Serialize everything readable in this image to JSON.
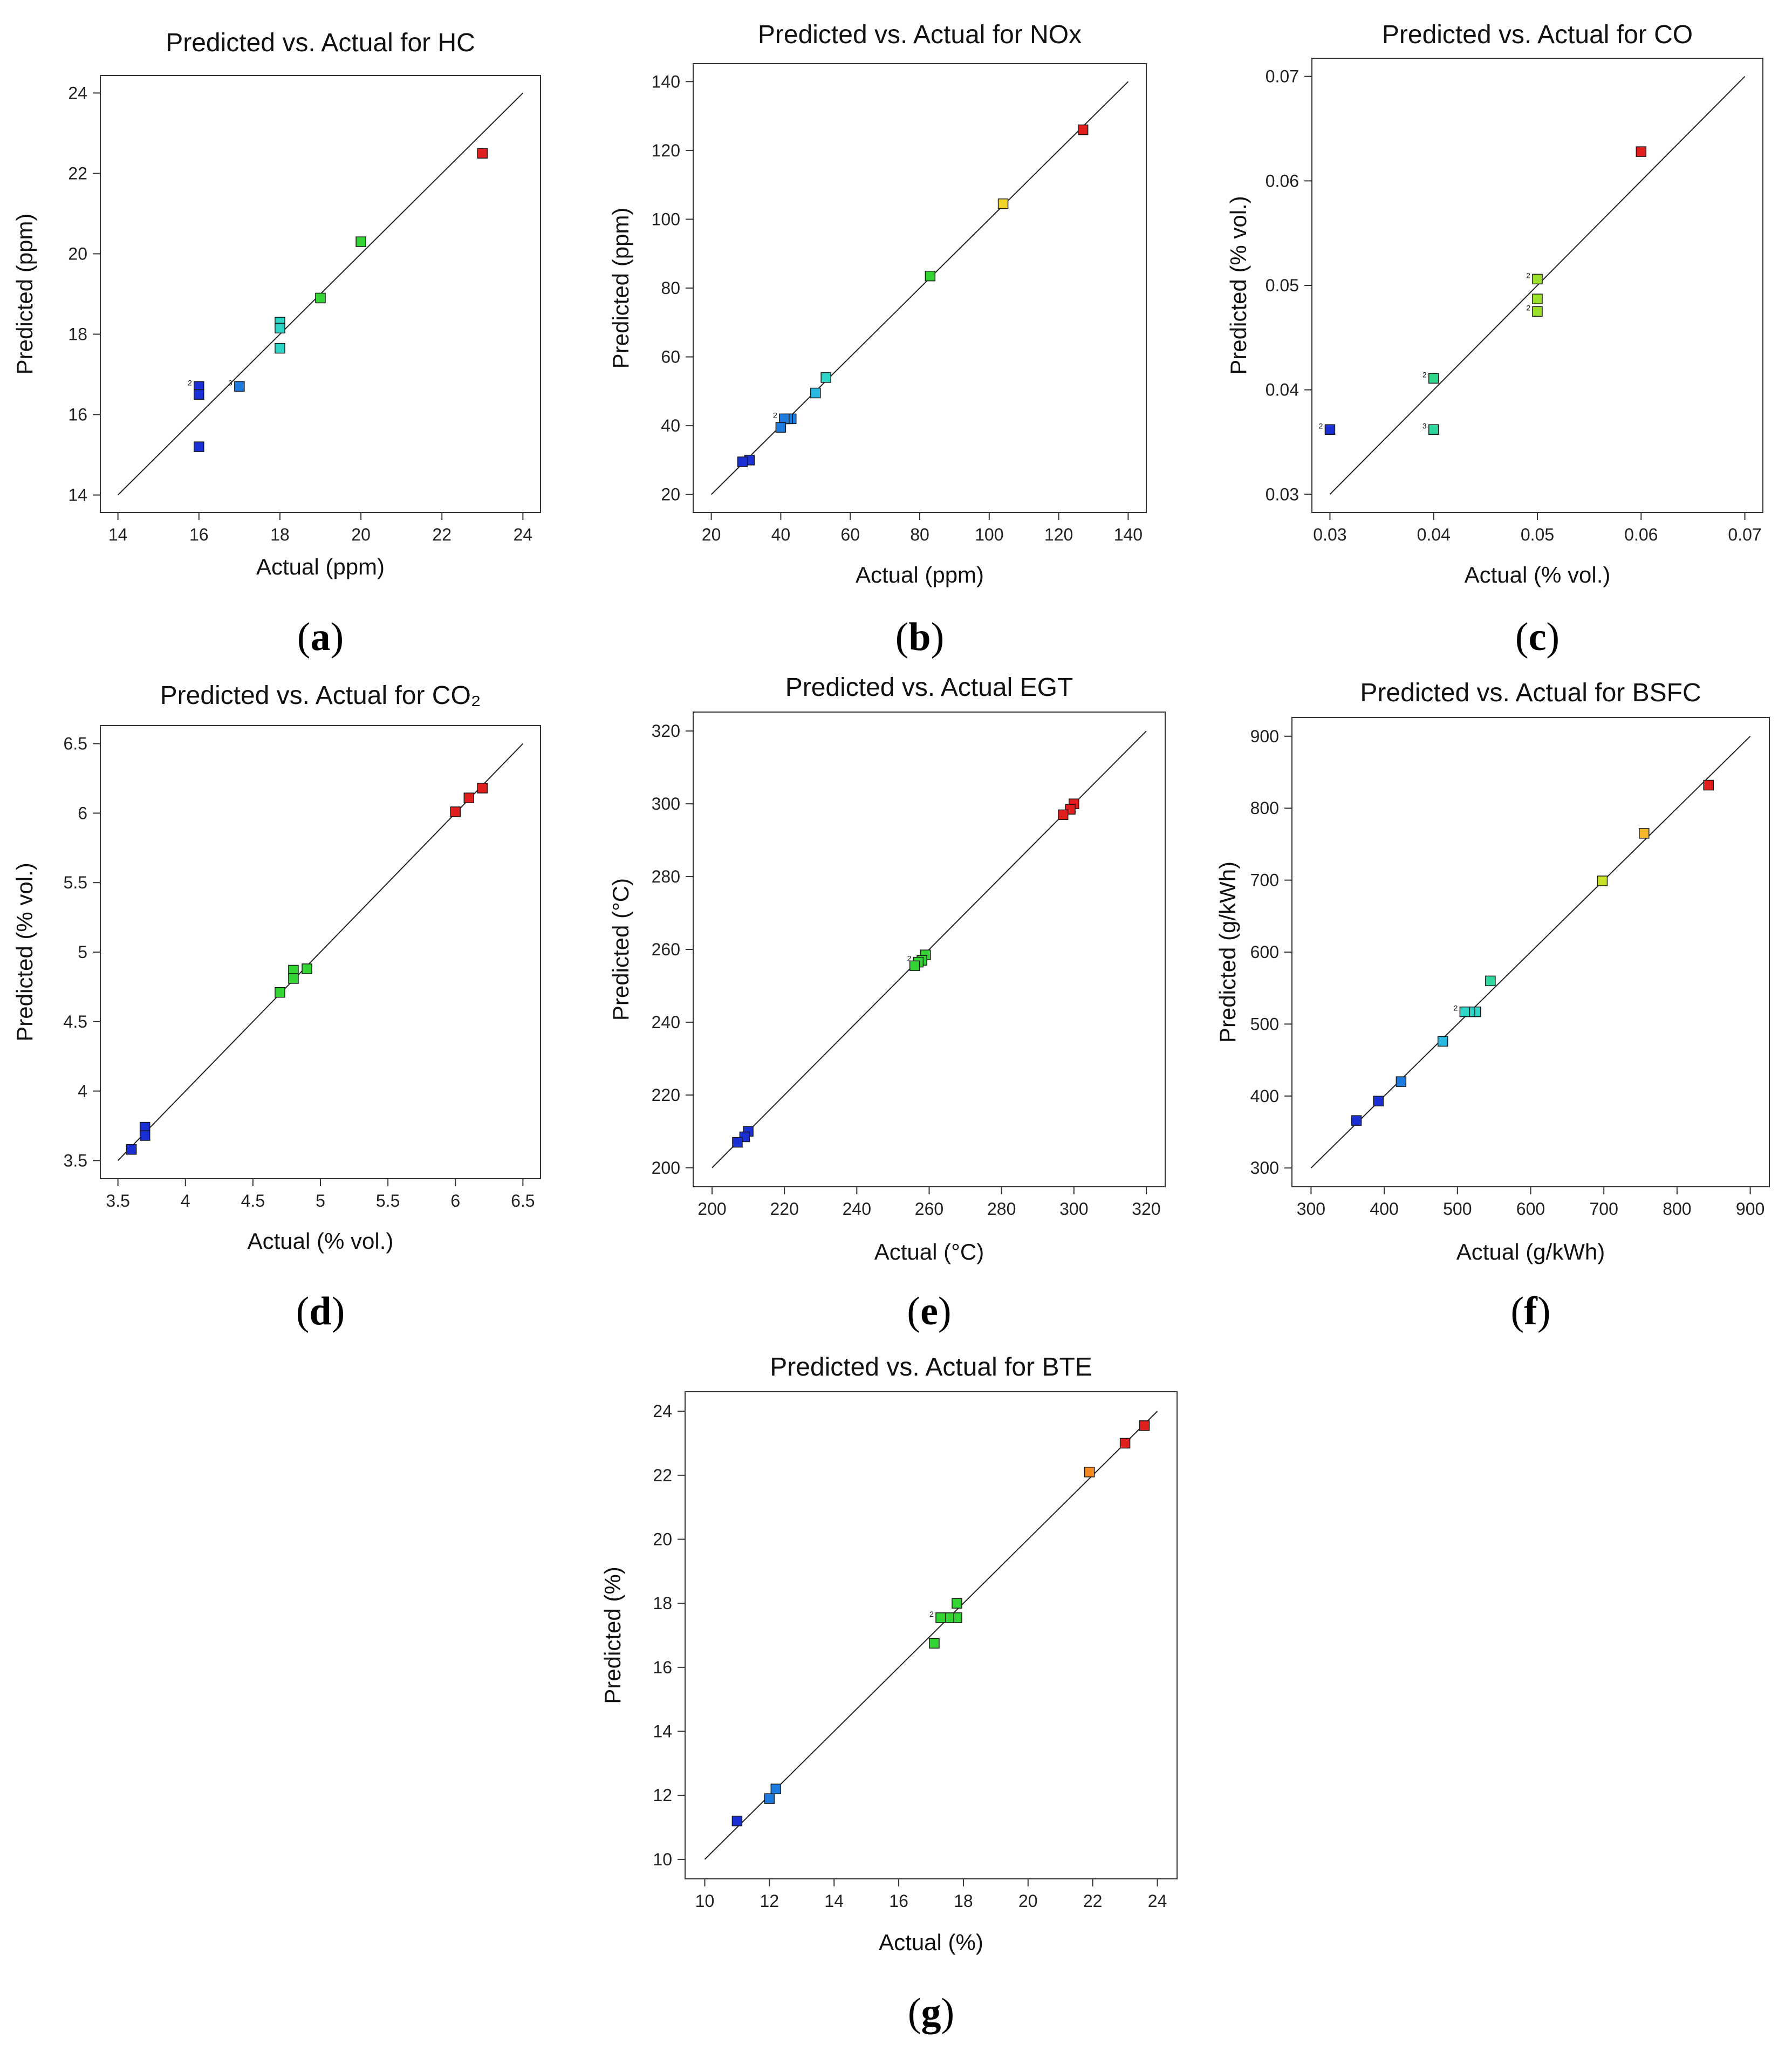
{
  "figure_title": "Predicted vs. Actual plots",
  "chart_data": [
    {
      "id": "a",
      "type": "scatter",
      "panel_label": "a",
      "title": "Predicted vs. Actual for HC",
      "xlabel": "Actual (ppm)",
      "ylabel": "Predicted (ppm)",
      "xlim": [
        14,
        24
      ],
      "ylim": [
        14,
        24
      ],
      "xticks": [
        14,
        16,
        18,
        20,
        22,
        24
      ],
      "yticks": [
        14,
        16,
        18,
        20,
        22,
        24
      ],
      "xtick_labels": [
        "14",
        "16",
        "18",
        "20",
        "22",
        "24"
      ],
      "ytick_labels": [
        "14",
        "16",
        "18",
        "20",
        "22",
        "24"
      ],
      "diagonal": [
        14,
        24
      ],
      "points": [
        {
          "x": 23,
          "y": 22.5,
          "color": "#e21f1f"
        },
        {
          "x": 20,
          "y": 20.3,
          "color": "#33d433"
        },
        {
          "x": 19,
          "y": 18.9,
          "color": "#33d433"
        },
        {
          "x": 18,
          "y": 18.3,
          "color": "#2fd6c8"
        },
        {
          "x": 18,
          "y": 18.15,
          "color": "#2fd6c8"
        },
        {
          "x": 18,
          "y": 17.65,
          "color": "#2fd6c8"
        },
        {
          "x": 17,
          "y": 16.7,
          "color": "#1e7be0",
          "count": "3"
        },
        {
          "x": 16,
          "y": 16.7,
          "color": "#1a2fd4",
          "count": "2"
        },
        {
          "x": 16,
          "y": 16.5,
          "color": "#1a2fd4"
        },
        {
          "x": 16,
          "y": 15.2,
          "color": "#1a2fd4"
        }
      ]
    },
    {
      "id": "b",
      "type": "scatter",
      "panel_label": "b",
      "title": "Predicted vs. Actual for NOx",
      "xlabel": "Actual (ppm)",
      "ylabel": "Predicted (ppm)",
      "xlim": [
        20,
        140
      ],
      "ylim": [
        20,
        140
      ],
      "xticks": [
        20,
        40,
        60,
        80,
        100,
        120,
        140
      ],
      "yticks": [
        20,
        40,
        60,
        80,
        100,
        120,
        140
      ],
      "xtick_labels": [
        "20",
        "40",
        "60",
        "80",
        "100",
        "120",
        "140"
      ],
      "ytick_labels": [
        "20",
        "40",
        "60",
        "80",
        "100",
        "120",
        "140"
      ],
      "diagonal": [
        20,
        140
      ],
      "points": [
        {
          "x": 127,
          "y": 126,
          "color": "#e21f1f"
        },
        {
          "x": 104,
          "y": 104.5,
          "color": "#f0d22a"
        },
        {
          "x": 83,
          "y": 83.5,
          "color": "#33d433"
        },
        {
          "x": 53,
          "y": 54,
          "color": "#2fd6c8"
        },
        {
          "x": 50,
          "y": 49.5,
          "color": "#2ab8e0"
        },
        {
          "x": 43,
          "y": 42,
          "color": "#1e7be0"
        },
        {
          "x": 42,
          "y": 42,
          "color": "#1e7be0"
        },
        {
          "x": 41,
          "y": 42,
          "color": "#1e7be0",
          "count": "2"
        },
        {
          "x": 40,
          "y": 39.5,
          "color": "#1e7be0"
        },
        {
          "x": 31,
          "y": 30,
          "color": "#1a2fd4"
        },
        {
          "x": 29,
          "y": 29.5,
          "color": "#1a2fd4"
        }
      ]
    },
    {
      "id": "c",
      "type": "scatter",
      "panel_label": "c",
      "title": "Predicted vs. Actual for CO",
      "xlabel": "Actual (% vol.)",
      "ylabel": "Predicted (% vol.)",
      "xlim": [
        0.03,
        0.07
      ],
      "ylim": [
        0.03,
        0.07
      ],
      "xticks": [
        0.03,
        0.04,
        0.05,
        0.06,
        0.07
      ],
      "yticks": [
        0.03,
        0.04,
        0.05,
        0.06,
        0.07
      ],
      "xtick_labels": [
        "0.03",
        "0.04",
        "0.05",
        "0.06",
        "0.07"
      ],
      "ytick_labels": [
        "0.03",
        "0.04",
        "0.05",
        "0.06",
        "0.07"
      ],
      "diagonal": [
        0.03,
        0.07
      ],
      "points": [
        {
          "x": 0.06,
          "y": 0.0628,
          "color": "#e21f1f"
        },
        {
          "x": 0.05,
          "y": 0.0506,
          "color": "#9be02a",
          "count": "2"
        },
        {
          "x": 0.05,
          "y": 0.0487,
          "color": "#9be02a"
        },
        {
          "x": 0.05,
          "y": 0.0475,
          "color": "#9be02a",
          "count": "2"
        },
        {
          "x": 0.04,
          "y": 0.0411,
          "color": "#2fd68c",
          "count": "2"
        },
        {
          "x": 0.04,
          "y": 0.0362,
          "color": "#2fd6a0",
          "count": "3"
        },
        {
          "x": 0.03,
          "y": 0.0362,
          "color": "#1a2fd4",
          "count": "2"
        }
      ]
    },
    {
      "id": "d",
      "type": "scatter",
      "panel_label": "d",
      "title": "Predicted vs. Actual for CO₂",
      "xlabel": "Actual (% vol.)",
      "ylabel": "Predicted (% vol.)",
      "xlim": [
        3.5,
        6.5
      ],
      "ylim": [
        3.5,
        6.5
      ],
      "xticks": [
        3.5,
        4,
        4.5,
        5,
        5.5,
        6,
        6.5
      ],
      "yticks": [
        3.5,
        4,
        4.5,
        5,
        5.5,
        6,
        6.5
      ],
      "xtick_labels": [
        "3.5",
        "4",
        "4.5",
        "5",
        "5.5",
        "6",
        "6.5"
      ],
      "ytick_labels": [
        "3.5",
        "4",
        "4.5",
        "5",
        "5.5",
        "6",
        "6.5"
      ],
      "diagonal": [
        3.5,
        6.5
      ],
      "points": [
        {
          "x": 6.2,
          "y": 6.18,
          "color": "#e21f1f"
        },
        {
          "x": 6.1,
          "y": 6.11,
          "color": "#e21f1f"
        },
        {
          "x": 6.0,
          "y": 6.01,
          "color": "#e21f1f"
        },
        {
          "x": 4.9,
          "y": 4.88,
          "color": "#33d433"
        },
        {
          "x": 4.8,
          "y": 4.87,
          "color": "#33d433"
        },
        {
          "x": 4.8,
          "y": 4.81,
          "color": "#33d433"
        },
        {
          "x": 4.7,
          "y": 4.71,
          "color": "#33d433"
        },
        {
          "x": 3.7,
          "y": 3.74,
          "color": "#1a2fd4"
        },
        {
          "x": 3.7,
          "y": 3.68,
          "color": "#1a2fd4"
        },
        {
          "x": 3.6,
          "y": 3.58,
          "color": "#1a2fd4"
        }
      ]
    },
    {
      "id": "e",
      "type": "scatter",
      "panel_label": "e",
      "title": "Predicted vs. Actual EGT",
      "xlabel": "Actual  (°C)",
      "ylabel": "Predicted (°C)",
      "xlim": [
        200,
        320
      ],
      "ylim": [
        200,
        320
      ],
      "xticks": [
        200,
        220,
        240,
        260,
        280,
        300,
        320
      ],
      "yticks": [
        200,
        220,
        240,
        260,
        280,
        300,
        320
      ],
      "xtick_labels": [
        "200",
        "220",
        "240",
        "260",
        "280",
        "300",
        "320"
      ],
      "ytick_labels": [
        "200",
        "220",
        "240",
        "260",
        "280",
        "300",
        "320"
      ],
      "diagonal": [
        200,
        320
      ],
      "points": [
        {
          "x": 300,
          "y": 300,
          "color": "#e21f1f"
        },
        {
          "x": 299,
          "y": 298.5,
          "color": "#e21f1f"
        },
        {
          "x": 297,
          "y": 297,
          "color": "#e21f1f"
        },
        {
          "x": 259,
          "y": 258.5,
          "color": "#33d433"
        },
        {
          "x": 258,
          "y": 257,
          "color": "#33d433"
        },
        {
          "x": 257,
          "y": 256.5,
          "color": "#33d433",
          "count": "2"
        },
        {
          "x": 256,
          "y": 255.5,
          "color": "#33d433"
        },
        {
          "x": 210,
          "y": 210,
          "color": "#1a2fd4"
        },
        {
          "x": 209,
          "y": 208.5,
          "color": "#1a2fd4"
        },
        {
          "x": 207,
          "y": 207,
          "color": "#1a2fd4"
        }
      ]
    },
    {
      "id": "f",
      "type": "scatter",
      "panel_label": "f",
      "title": "Predicted vs. Actual for BSFC",
      "xlabel": "Actual (g/kWh)",
      "ylabel": "Predicted (g/kWh)",
      "xlim": [
        300,
        900
      ],
      "ylim": [
        300,
        900
      ],
      "xticks": [
        300,
        400,
        500,
        600,
        700,
        800,
        900
      ],
      "yticks": [
        300,
        400,
        500,
        600,
        700,
        800,
        900
      ],
      "xtick_labels": [
        "300",
        "400",
        "500",
        "600",
        "700",
        "800",
        "900"
      ],
      "ytick_labels": [
        "300",
        "400",
        "500",
        "600",
        "700",
        "800",
        "900"
      ],
      "diagonal": [
        300,
        900
      ],
      "points": [
        {
          "x": 843,
          "y": 832,
          "color": "#e21f1f"
        },
        {
          "x": 755,
          "y": 765,
          "color": "#f5b82a"
        },
        {
          "x": 698,
          "y": 699,
          "color": "#c8e02a"
        },
        {
          "x": 545,
          "y": 560,
          "color": "#2fd6a0"
        },
        {
          "x": 525,
          "y": 517,
          "color": "#2fd6c8"
        },
        {
          "x": 517,
          "y": 517,
          "color": "#2fd6c8"
        },
        {
          "x": 510,
          "y": 517,
          "color": "#2fd6c8",
          "count": "2"
        },
        {
          "x": 480,
          "y": 476,
          "color": "#2ab8e0"
        },
        {
          "x": 423,
          "y": 420,
          "color": "#1e7be0"
        },
        {
          "x": 392,
          "y": 393,
          "color": "#1a2fd4"
        },
        {
          "x": 362,
          "y": 366,
          "color": "#1a2fd4"
        }
      ]
    },
    {
      "id": "g",
      "type": "scatter",
      "panel_label": "g",
      "title": "Predicted vs. Actual for BTE",
      "xlabel": "Actual (%)",
      "ylabel": "Predicted (%)",
      "xlim": [
        10,
        24
      ],
      "ylim": [
        10,
        24
      ],
      "xticks": [
        10,
        12,
        14,
        16,
        18,
        20,
        22,
        24
      ],
      "yticks": [
        10,
        12,
        14,
        16,
        18,
        20,
        22,
        24
      ],
      "xtick_labels": [
        "10",
        "12",
        "14",
        "16",
        "18",
        "20",
        "22",
        "24"
      ],
      "ytick_labels": [
        "10",
        "12",
        "14",
        "16",
        "18",
        "20",
        "22",
        "24"
      ],
      "diagonal": [
        10,
        24
      ],
      "points": [
        {
          "x": 23.6,
          "y": 23.55,
          "color": "#e21f1f"
        },
        {
          "x": 23.0,
          "y": 23.0,
          "color": "#e21f1f"
        },
        {
          "x": 21.9,
          "y": 22.1,
          "color": "#f58a1f"
        },
        {
          "x": 17.8,
          "y": 18.0,
          "color": "#33d433"
        },
        {
          "x": 17.8,
          "y": 17.55,
          "color": "#33d433"
        },
        {
          "x": 17.55,
          "y": 17.55,
          "color": "#33d433"
        },
        {
          "x": 17.3,
          "y": 17.55,
          "color": "#33d433",
          "count": "2"
        },
        {
          "x": 17.1,
          "y": 16.75,
          "color": "#33d433"
        },
        {
          "x": 12.2,
          "y": 12.2,
          "color": "#1e7be0"
        },
        {
          "x": 12.0,
          "y": 11.9,
          "color": "#1e7be0"
        },
        {
          "x": 11.0,
          "y": 11.2,
          "color": "#1a2fd4"
        }
      ]
    }
  ]
}
